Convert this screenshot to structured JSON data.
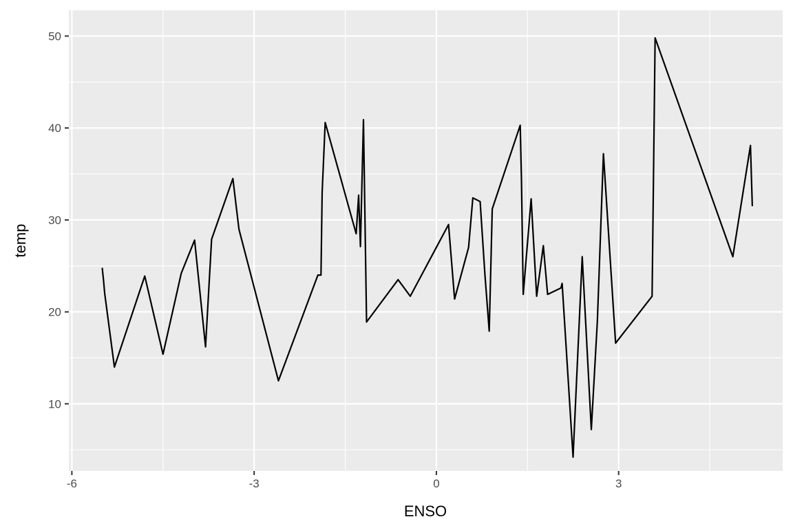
{
  "chart_data": {
    "type": "line",
    "title": "",
    "xlabel": "ENSO",
    "ylabel": "temp",
    "xlim": [
      -6.05,
      5.7
    ],
    "ylim": [
      2.7,
      52.8
    ],
    "grid": true,
    "legend": "none",
    "colors": {
      "panel_background": "#EBEBEB",
      "grid_major": "#FFFFFF",
      "line": "#000000",
      "tick_text": "#4D4D4D",
      "title_text": "#000000"
    },
    "x_ticks": [
      -6,
      -3,
      0,
      3
    ],
    "x_tick_labels": [
      "-6",
      "-3",
      "0",
      "3"
    ],
    "x_minor_ticks": [
      -4.5,
      -1.5,
      1.5,
      4.5
    ],
    "y_ticks": [
      10,
      20,
      30,
      40,
      50
    ],
    "y_tick_labels": [
      "10",
      "20",
      "30",
      "40",
      "50"
    ],
    "y_minor_ticks": [
      5,
      15,
      25,
      35,
      45
    ],
    "series": [
      {
        "x": [
          -5.5,
          -5.48,
          -5.46,
          -5.3,
          -4.8,
          -4.5,
          -4.2,
          -3.98,
          -3.8,
          -3.7,
          -3.35,
          -3.25,
          -2.6,
          -1.95,
          -1.9,
          -1.88,
          -1.83,
          -1.32,
          -1.28,
          -1.25,
          -1.2,
          -1.15,
          -0.63,
          -0.43,
          0.2,
          0.3,
          0.53,
          0.6,
          0.72,
          0.8,
          0.87,
          0.92,
          1.38,
          1.4,
          1.43,
          1.56,
          1.65,
          1.76,
          1.83,
          2.05,
          2.07,
          2.25,
          2.4,
          2.55,
          2.65,
          2.75,
          2.95,
          3.55,
          3.6,
          4.88,
          5.17,
          5.2
        ],
        "y": [
          24.8,
          23.5,
          22.0,
          14.0,
          23.9,
          15.4,
          24.2,
          27.8,
          16.2,
          27.9,
          34.5,
          29.0,
          12.5,
          24.0,
          24.0,
          33.0,
          40.6,
          28.5,
          32.7,
          27.1,
          40.9,
          18.9,
          23.5,
          21.7,
          29.5,
          21.4,
          27.0,
          32.4,
          32.0,
          24.0,
          17.9,
          31.2,
          40.3,
          34.5,
          21.9,
          32.3,
          21.7,
          27.2,
          21.9,
          22.6,
          23.1,
          4.2,
          26.0,
          7.2,
          19.0,
          37.2,
          16.6,
          21.7,
          49.8,
          26.0,
          38.1,
          31.5
        ]
      }
    ]
  }
}
